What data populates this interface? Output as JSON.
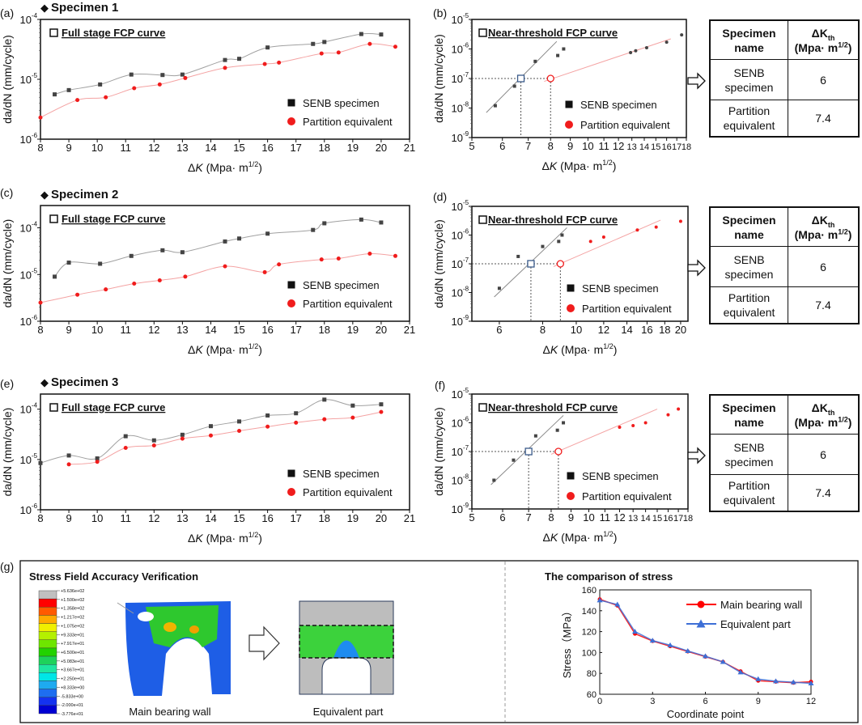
{
  "figure": {
    "panel_labels": [
      "(a)",
      "(b)",
      "(c)",
      "(d)",
      "(e)",
      "(f)",
      "(g)"
    ],
    "specimen_headings": [
      "Specimen 1",
      "Specimen 2",
      "Specimen 3"
    ]
  },
  "colors": {
    "senb_line": "#a0a0a0",
    "senb_marker": "#444444",
    "partition_line": "#f4a3a3",
    "partition_marker": "#f01c1c",
    "main_wall": "#ff0000",
    "equivalent": "#3d6fd6"
  },
  "chart_data": [
    {
      "panel": "(a)",
      "type": "line",
      "title": "Full stage FCP curve",
      "xlabel": {
        "delta": "Δ",
        "var": "K",
        "unit": " (Mpa· m",
        "exp": "1/2",
        "close": ")"
      },
      "ylabel": "da/dN  (mm/cycle)",
      "xscale": "linear",
      "yscale": "log",
      "xlim": [
        8,
        21
      ],
      "ylim": [
        1e-06,
        0.0001
      ],
      "xticks": [
        "8",
        "9",
        "10",
        "11",
        "12",
        "13",
        "14",
        "15",
        "16",
        "17",
        "18",
        "19",
        "20",
        "21"
      ],
      "yticks": [
        {
          "base": "10",
          "exp": "-6",
          "value": 1e-06
        },
        {
          "base": "10",
          "exp": "-5",
          "value": 1e-05
        },
        {
          "base": "10",
          "exp": "-4",
          "value": 0.0001
        }
      ],
      "legend": "bottom-right",
      "series": [
        {
          "name": "SENB specimen",
          "marker": "square",
          "x": [
            8.5,
            9,
            10.1,
            11.2,
            12.3,
            13,
            14.5,
            15,
            16,
            17.6,
            18,
            19.3,
            20
          ],
          "y": [
            5.6e-06,
            6.6e-06,
            8.2e-06,
            1.2e-05,
            1.18e-05,
            1.2e-05,
            2.1e-05,
            2.2e-05,
            3.4e-05,
            3.9e-05,
            4.2e-05,
            5.7e-05,
            5.6e-05
          ]
        },
        {
          "name": "Partition equivalent",
          "marker": "circle",
          "x": [
            8,
            9.3,
            10.3,
            11.3,
            12.2,
            13.1,
            14.5,
            15.9,
            16.4,
            17.9,
            18.5,
            19.6,
            20.5
          ],
          "y": [
            2.3e-06,
            4.5e-06,
            5e-06,
            7.1e-06,
            8.2e-06,
            1.05e-05,
            1.55e-05,
            1.8e-05,
            1.9e-05,
            2.7e-05,
            2.8e-05,
            3.9e-05,
            3.5e-05
          ]
        }
      ]
    },
    {
      "panel": "(b)",
      "type": "scatter",
      "title": "Near-threshold FCP curve",
      "xlabel": {
        "delta": "Δ",
        "var": "K",
        "unit": " (Mpa· m",
        "exp": "1/2",
        "close": ")"
      },
      "ylabel": "da/dN  (mm/cycle)",
      "xscale": "log",
      "yscale": "log",
      "xlim": [
        5,
        18
      ],
      "ylim": [
        1e-09,
        1e-05
      ],
      "xticks": [
        "5",
        "6",
        "7",
        "8",
        "9",
        "10",
        "11",
        "12",
        "13",
        "14",
        "15",
        "16",
        "17",
        "18"
      ],
      "yticks": [
        {
          "base": "10",
          "exp": "-9",
          "value": 1e-09
        },
        {
          "base": "10",
          "exp": "-8",
          "value": 1e-08
        },
        {
          "base": "10",
          "exp": "-7",
          "value": 1e-07
        },
        {
          "base": "10",
          "exp": "-6",
          "value": 1e-06
        },
        {
          "base": "10",
          "exp": "-5",
          "value": 1e-05
        }
      ],
      "legend": "bottom-right",
      "series": [
        {
          "name": "SENB specimen",
          "marker": "square",
          "x": [
            5.75,
            6.45,
            7.3,
            8.35,
            8.65
          ],
          "y": [
            1.2e-08,
            5.5e-08,
            3.8e-07,
            6e-07,
            1e-06
          ],
          "fit": {
            "x": [
              5.45,
              8.3
            ],
            "y": [
              7e-09,
              1.8e-06
            ]
          },
          "threshold_x": 6.7
        },
        {
          "name": "Partition equivalent",
          "marker": "circle",
          "points_dark": true,
          "x": [
            12.9,
            13.3,
            14.2,
            16,
            17.5
          ],
          "y": [
            7.5e-07,
            8.7e-07,
            1.1e-06,
            1.7e-06,
            3e-06
          ],
          "fit": {
            "x": [
              7.7,
              16.4
            ],
            "y": [
              8e-08,
              2.2e-06
            ]
          },
          "threshold_x": 8
        }
      ],
      "threshold_y": 1e-07
    },
    {
      "panel": "(c)",
      "type": "line",
      "title": "Full stage FCP curve",
      "xlabel": {
        "delta": "Δ",
        "var": "K",
        "unit": " (Mpa· m",
        "exp": "1/2",
        "close": ")"
      },
      "ylabel": "da/dN  (mm/cycle)",
      "xscale": "linear",
      "yscale": "log",
      "xlim": [
        8,
        21
      ],
      "ylim": [
        1e-06,
        0.0003
      ],
      "xticks": [
        "8",
        "9",
        "10",
        "11",
        "12",
        "13",
        "14",
        "15",
        "16",
        "17",
        "18",
        "19",
        "20",
        "21"
      ],
      "yticks": [
        {
          "base": "10",
          "exp": "-6",
          "value": 1e-06
        },
        {
          "base": "10",
          "exp": "-5",
          "value": 1e-05
        },
        {
          "base": "10",
          "exp": "-4",
          "value": 0.0001
        }
      ],
      "legend": "bottom-right",
      "series": [
        {
          "name": "SENB specimen",
          "marker": "square",
          "x": [
            8.5,
            9,
            10.1,
            11.2,
            12.3,
            13,
            14.5,
            15,
            16,
            17.6,
            18,
            19.3,
            20
          ],
          "y": [
            9e-06,
            1.8e-05,
            1.7e-05,
            2.5e-05,
            3.3e-05,
            3e-05,
            5.1e-05,
            5.9e-05,
            7.5e-05,
            9e-05,
            0.000125,
            0.00015,
            0.00013
          ]
        },
        {
          "name": "Partition equivalent",
          "marker": "circle",
          "x": [
            8,
            9.3,
            10.3,
            11.3,
            12.2,
            13.1,
            14.5,
            15.9,
            16.4,
            17.9,
            18.5,
            19.6,
            20.5
          ],
          "y": [
            2.5e-06,
            3.7e-06,
            4.8e-06,
            6.4e-06,
            7.5e-06,
            9e-06,
            1.5e-05,
            1.12e-05,
            1.65e-05,
            2.1e-05,
            2.2e-05,
            2.8e-05,
            2.5e-05
          ]
        }
      ]
    },
    {
      "panel": "(d)",
      "type": "scatter",
      "title": "Near-threshold FCP curve",
      "xlabel": {
        "delta": "Δ",
        "var": "K",
        "unit": " (Mpa· m",
        "exp": "1/2",
        "close": ")"
      },
      "ylabel": "da/dN  (mm/cycle)",
      "xscale": "log",
      "yscale": "log",
      "xlim": [
        5,
        21
      ],
      "ylim": [
        1e-09,
        1e-05
      ],
      "xticks": [
        "6",
        "8",
        "10",
        "12",
        "14",
        "16",
        "18",
        "20"
      ],
      "yticks": [
        {
          "base": "10",
          "exp": "-9",
          "value": 1e-09
        },
        {
          "base": "10",
          "exp": "-8",
          "value": 1e-08
        },
        {
          "base": "10",
          "exp": "-7",
          "value": 1e-07
        },
        {
          "base": "10",
          "exp": "-6",
          "value": 1e-06
        },
        {
          "base": "10",
          "exp": "-5",
          "value": 1e-05
        }
      ],
      "legend": "bottom-right",
      "series": [
        {
          "name": "SENB specimen",
          "marker": "square",
          "x": [
            6,
            6.8,
            8,
            8.9,
            9.1
          ],
          "y": [
            1.4e-08,
            1.8e-07,
            4e-07,
            6e-07,
            1e-06
          ],
          "fit": {
            "x": [
              5.8,
              9.4
            ],
            "y": [
              7e-09,
              1.8e-06
            ]
          },
          "threshold_x": 7.4
        },
        {
          "name": "Partition equivalent",
          "marker": "circle",
          "x": [
            11,
            12,
            15,
            17,
            20
          ],
          "y": [
            6e-07,
            8.5e-07,
            1.5e-06,
            1.9e-06,
            3e-06
          ],
          "fit": {
            "x": [
              8.6,
              17.5
            ],
            "y": [
              8e-08,
              3.3e-06
            ]
          },
          "threshold_x": 9
        }
      ],
      "threshold_y": 1e-07
    },
    {
      "panel": "(e)",
      "type": "line",
      "title": "Full stage FCP curve",
      "xlabel": {
        "delta": "Δ",
        "var": "K",
        "unit": " (Mpa· m",
        "exp": "1/2",
        "close": ")"
      },
      "ylabel": "da/dN  (mm/cycle)",
      "xscale": "linear",
      "yscale": "log",
      "xlim": [
        8,
        21
      ],
      "ylim": [
        1e-06,
        0.0002
      ],
      "xticks": [
        "8",
        "9",
        "10",
        "11",
        "12",
        "13",
        "14",
        "15",
        "16",
        "17",
        "18",
        "19",
        "20",
        "21"
      ],
      "yticks": [
        {
          "base": "10",
          "exp": "-6",
          "value": 1e-06
        },
        {
          "base": "10",
          "exp": "-5",
          "value": 1e-05
        },
        {
          "base": "10",
          "exp": "-4",
          "value": 0.0001
        }
      ],
      "legend": "bottom-right",
      "series": [
        {
          "name": "SENB specimen",
          "marker": "square",
          "x": [
            8,
            9,
            10,
            11,
            12,
            13,
            14,
            15,
            16,
            17,
            18,
            19,
            20
          ],
          "y": [
            8.5e-06,
            1.2e-05,
            1.05e-05,
            2.9e-05,
            2.4e-05,
            3.1e-05,
            4.6e-05,
            5.7e-05,
            7.5e-05,
            8.3e-05,
            0.000155,
            0.000118,
            0.000125
          ]
        },
        {
          "name": "Partition equivalent",
          "marker": "circle",
          "x": [
            9,
            10,
            11,
            12,
            13,
            14,
            15,
            16,
            17,
            18,
            19,
            20
          ],
          "y": [
            8e-06,
            9e-06,
            1.7e-05,
            1.9e-05,
            2.6e-05,
            3e-05,
            3.7e-05,
            4.5e-05,
            5.4e-05,
            6.3e-05,
            6.8e-05,
            8.8e-05
          ]
        }
      ]
    },
    {
      "panel": "(f)",
      "type": "scatter",
      "title": "Near-threshold FCP curve",
      "xlabel": {
        "delta": "Δ",
        "var": "K",
        "unit": " (Mpa· m",
        "exp": "1/2",
        "close": ")"
      },
      "ylabel": "da/dN  (mm/cycle)",
      "xscale": "log",
      "yscale": "log",
      "xlim": [
        5,
        18
      ],
      "ylim": [
        1e-09,
        1e-05
      ],
      "xticks": [
        "5",
        "6",
        "7",
        "8",
        "9",
        "10",
        "11",
        "12",
        "13",
        "14",
        "15",
        "16",
        "17",
        "18"
      ],
      "yticks": [
        {
          "base": "10",
          "exp": "-9",
          "value": 1e-09
        },
        {
          "base": "10",
          "exp": "-8",
          "value": 1e-08
        },
        {
          "base": "10",
          "exp": "-7",
          "value": 1e-07
        },
        {
          "base": "10",
          "exp": "-6",
          "value": 1e-06
        },
        {
          "base": "10",
          "exp": "-5",
          "value": 1e-05
        }
      ],
      "legend": "bottom-right",
      "series": [
        {
          "name": "SENB specimen",
          "marker": "square",
          "x": [
            5.7,
            6.4,
            7.3,
            8.3,
            8.6
          ],
          "y": [
            1e-08,
            5e-08,
            3.5e-07,
            5.5e-07,
            1e-06
          ],
          "fit": {
            "x": [
              5.6,
              8.6
            ],
            "y": [
              7e-09,
              1.8e-06
            ]
          },
          "threshold_x": 7
        },
        {
          "name": "Partition equivalent",
          "marker": "circle",
          "x": [
            12,
            13,
            14,
            16,
            17
          ],
          "y": [
            7e-07,
            8e-07,
            1e-06,
            1.9e-06,
            3e-06
          ],
          "fit": {
            "x": [
              8,
              15
            ],
            "y": [
              8e-08,
              3e-06
            ]
          },
          "threshold_x": 8.35
        }
      ],
      "threshold_y": 1e-07
    },
    {
      "panel": "(g)",
      "type": "line",
      "title": "The comparison of stress",
      "xlabel": "Coordinate point",
      "ylabel": "Stress（MPa）",
      "xlim": [
        0,
        12
      ],
      "ylim": [
        60,
        160
      ],
      "xticks": [
        "0",
        "3",
        "6",
        "9",
        "12"
      ],
      "yticks": [
        "60",
        "80",
        "100",
        "120",
        "140",
        "160"
      ],
      "legend": "top-right",
      "series": [
        {
          "name": "Main bearing wall",
          "marker": "circle",
          "x": [
            0,
            1,
            2,
            3,
            4,
            5,
            6,
            7,
            8,
            9,
            10,
            11,
            12
          ],
          "y": [
            151,
            145,
            118,
            111,
            106,
            101,
            96,
            91,
            82,
            73,
            72,
            71,
            72
          ]
        },
        {
          "name": "Equivalent part",
          "marker": "triangle",
          "x": [
            0,
            1,
            2,
            3,
            4,
            5,
            6,
            7,
            8,
            9,
            10,
            11,
            12
          ],
          "y": [
            150,
            146,
            120,
            111.5,
            107,
            101.5,
            96.5,
            91,
            81,
            74.5,
            72.5,
            71.5,
            70.5
          ]
        }
      ]
    }
  ],
  "tables": [
    {
      "header": {
        "name": "Specimen name",
        "dk": "ΔK",
        "sub": "th",
        "unit": "(Mpa· m",
        "exp": "1/2",
        "close": ")"
      },
      "rows": [
        {
          "name": "SENB specimen",
          "value": "6"
        },
        {
          "name": "Partition equivalent",
          "value": "7.4"
        }
      ]
    },
    {
      "header": {
        "name": "Specimen name",
        "dk": "ΔK",
        "sub": "th",
        "unit": "(Mpa· m",
        "exp": "1/2",
        "close": ")"
      },
      "rows": [
        {
          "name": "SENB specimen",
          "value": "6"
        },
        {
          "name": "Partition equivalent",
          "value": "7.4"
        }
      ]
    },
    {
      "header": {
        "name": "Specimen name",
        "dk": "ΔK",
        "sub": "th",
        "unit": "(Mpa· m",
        "exp": "1/2",
        "close": ")"
      },
      "rows": [
        {
          "name": "SENB specimen",
          "value": "6"
        },
        {
          "name": "Partition equivalent",
          "value": "7.4"
        }
      ]
    }
  ],
  "panel_g": {
    "title": "Stress Field Accuracy Verification",
    "colorbar_labels": [
      "+5.636e+02",
      "+1.500e+02",
      "+1.358e+02",
      "+1.217e+02",
      "+1.075e+02",
      "+9.333e+01",
      "+7.917e+01",
      "+6.500e+01",
      "+5.083e+01",
      "+3.667e+01",
      "+2.250e+01",
      "+8.333e+00",
      "-5.833e+00",
      "-2.000e+01",
      "-3.776e+01"
    ],
    "colorbar_colors": [
      "#c0c0c0",
      "#ff0000",
      "#ff5a00",
      "#ffaa00",
      "#f0f000",
      "#b4f000",
      "#6ee600",
      "#22d200",
      "#1ed25a",
      "#1ee6a0",
      "#00e6e6",
      "#1eaaf0",
      "#1e6ef0",
      "#1432f0",
      "#0000d2"
    ],
    "main_wall_label": "Main bearing wall",
    "equivalent_label": "Equivalent part"
  }
}
